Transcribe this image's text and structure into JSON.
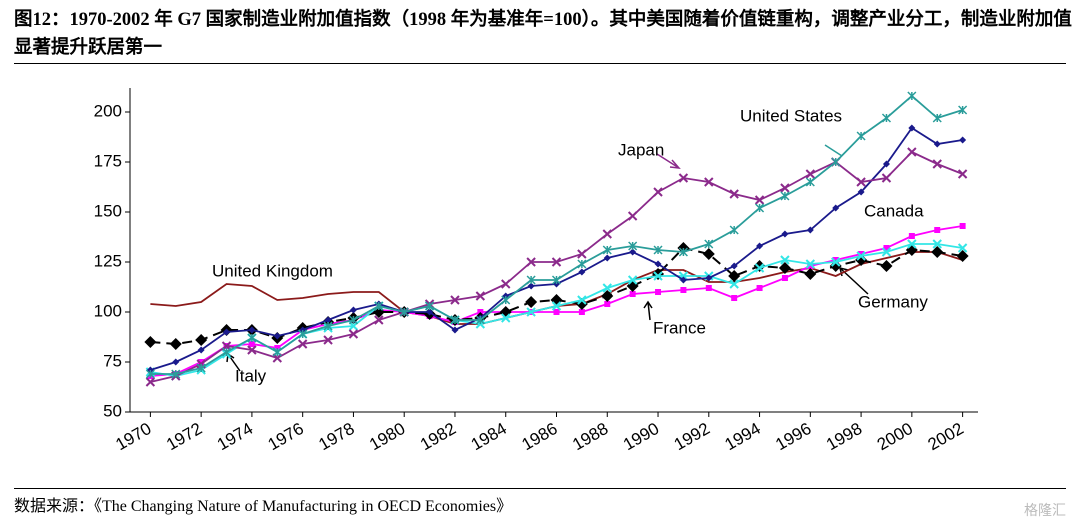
{
  "chart_data": {
    "type": "line",
    "title": "图12：1970-2002 年 G7 国家制造业附加值指数（1998 年为基准年=100）。其中美国随着价值链重构，调整产业分工，制造业附加值显著提升跃居第一",
    "source": "数据来源：《The Changing Nature of Manufacturing in OECD Economies》",
    "watermark": "格隆汇",
    "x": [
      1970,
      1971,
      1972,
      1973,
      1974,
      1975,
      1976,
      1977,
      1978,
      1979,
      1980,
      1981,
      1982,
      1983,
      1984,
      1985,
      1986,
      1987,
      1988,
      1989,
      1990,
      1991,
      1992,
      1993,
      1994,
      1995,
      1996,
      1997,
      1998,
      1999,
      2000,
      2001,
      2002
    ],
    "xlim": [
      1969,
      2003
    ],
    "xticks": [
      1970,
      1972,
      1974,
      1976,
      1978,
      1980,
      1982,
      1984,
      1986,
      1988,
      1990,
      1992,
      1994,
      1996,
      1998,
      2000,
      2002
    ],
    "ylim": [
      50,
      212
    ],
    "yticks": [
      50,
      75,
      100,
      125,
      150,
      175,
      200
    ],
    "grid": false,
    "series": [
      {
        "name": "United Kingdom",
        "color": "#8b1a1a",
        "marker": "none",
        "dash": false,
        "values": [
          104,
          103,
          105,
          114,
          113,
          106,
          107,
          109,
          110,
          110,
          100,
          98,
          94,
          94,
          97,
          100,
          103,
          104,
          109,
          116,
          121,
          121,
          115,
          115,
          117,
          120,
          122,
          118,
          124,
          127,
          130,
          130,
          126
        ]
      },
      {
        "name": "France",
        "color": "#ff00ff",
        "marker": "square",
        "dash": false,
        "values": [
          68,
          69,
          75,
          83,
          84,
          82,
          91,
          94,
          96,
          101,
          100,
          98,
          95,
          100,
          100,
          100,
          100,
          100,
          104,
          109,
          110,
          111,
          112,
          107,
          112,
          117,
          123,
          126,
          129,
          132,
          138,
          141,
          143
        ]
      },
      {
        "name": "Germany",
        "color": "#000000",
        "marker": "diamond",
        "dash": true,
        "values": [
          85,
          84,
          86,
          91,
          91,
          87,
          92,
          95,
          97,
          100,
          100,
          99,
          96,
          97,
          100,
          105,
          106,
          104,
          108,
          113,
          119,
          132,
          129,
          118,
          123,
          122,
          119,
          123,
          126,
          123,
          131,
          130,
          128
        ]
      },
      {
        "name": "Italy",
        "color": "#33e6e6",
        "marker": "x",
        "dash": false,
        "values": [
          70,
          68,
          71,
          79,
          87,
          80,
          89,
          92,
          93,
          103,
          100,
          103,
          96,
          94,
          97,
          100,
          103,
          106,
          112,
          116,
          118,
          118,
          118,
          114,
          122,
          126,
          124,
          125,
          128,
          130,
          134,
          134,
          132
        ]
      },
      {
        "name": "Canada",
        "color": "#1a1a8c",
        "marker": "dot",
        "dash": false,
        "values": [
          71,
          75,
          81,
          90,
          91,
          88,
          91,
          96,
          101,
          104,
          100,
          100,
          91,
          97,
          108,
          113,
          114,
          120,
          127,
          130,
          124,
          116,
          117,
          123,
          133,
          139,
          141,
          152,
          160,
          174,
          192,
          184,
          186
        ]
      },
      {
        "name": "Japan",
        "color": "#8b2a8b",
        "marker": "x",
        "dash": false,
        "values": [
          65,
          68,
          74,
          83,
          81,
          77,
          84,
          86,
          89,
          96,
          100,
          104,
          106,
          108,
          114,
          125,
          125,
          129,
          139,
          148,
          160,
          167,
          165,
          159,
          156,
          162,
          169,
          175,
          165,
          167,
          180,
          174,
          169
        ]
      },
      {
        "name": "United States",
        "color": "#2a9d9a",
        "marker": "star",
        "dash": false,
        "values": [
          69,
          69,
          72,
          80,
          87,
          80,
          89,
          93,
          96,
          103,
          100,
          103,
          96,
          96,
          106,
          116,
          116,
          124,
          131,
          133,
          131,
          130,
          134,
          141,
          152,
          158,
          165,
          175,
          188,
          197,
          208,
          197,
          201
        ]
      }
    ]
  }
}
